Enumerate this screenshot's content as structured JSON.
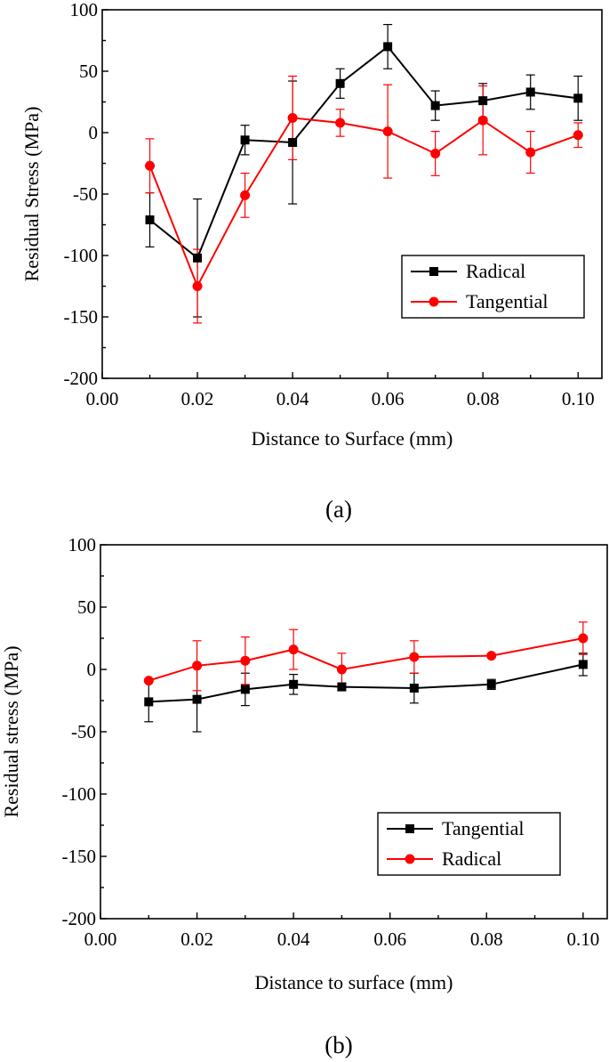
{
  "chart_data": [
    {
      "type": "line",
      "panel_label": "(a)",
      "xlabel": "Distance to Surface (mm)",
      "ylabel": "Residual Stress (MPa)",
      "xlim": [
        0.0,
        0.105
      ],
      "ylim": [
        -200,
        100
      ],
      "x_ticks": [
        0.0,
        0.02,
        0.04,
        0.06,
        0.08,
        0.1
      ],
      "x_tick_labels": [
        "0.00",
        "0.02",
        "0.04",
        "0.06",
        "0.08",
        "0.10"
      ],
      "y_ticks": [
        -200,
        -150,
        -100,
        -50,
        0,
        50,
        100
      ],
      "y_tick_labels": [
        "-200",
        "-150",
        "-100",
        "-50",
        "0",
        "50",
        "100"
      ],
      "legend_position": "lower-right",
      "series": [
        {
          "name": "Radical",
          "color": "#000000",
          "marker": "square",
          "x": [
            0.01,
            0.02,
            0.03,
            0.04,
            0.05,
            0.06,
            0.07,
            0.08,
            0.09,
            0.1
          ],
          "y": [
            -71,
            -102,
            -6,
            -8,
            40,
            70,
            22,
            26,
            33,
            28
          ],
          "err": [
            22,
            48,
            12,
            50,
            12,
            18,
            12,
            14,
            14,
            18
          ]
        },
        {
          "name": "Tangential",
          "color": "#ff0000",
          "marker": "circle",
          "x": [
            0.01,
            0.02,
            0.03,
            0.04,
            0.05,
            0.06,
            0.07,
            0.08,
            0.09,
            0.1
          ],
          "y": [
            -27,
            -125,
            -51,
            12,
            8,
            1,
            -17,
            10,
            -16,
            -2
          ],
          "err": [
            22,
            30,
            18,
            34,
            11,
            38,
            18,
            28,
            17,
            10
          ]
        }
      ]
    },
    {
      "type": "line",
      "panel_label": "(b)",
      "xlabel": "Distance to surface (mm)",
      "ylabel": "Residual stress (MPa)",
      "xlim": [
        0.0,
        0.105
      ],
      "ylim": [
        -200,
        100
      ],
      "x_ticks": [
        0.0,
        0.02,
        0.04,
        0.06,
        0.08,
        0.1
      ],
      "x_tick_labels": [
        "0.00",
        "0.02",
        "0.04",
        "0.06",
        "0.08",
        "0.10"
      ],
      "y_ticks": [
        -200,
        -150,
        -100,
        -50,
        0,
        50,
        100
      ],
      "y_tick_labels": [
        "-200",
        "-150",
        "-100",
        "-50",
        "0",
        "50",
        "100"
      ],
      "legend_position": "lower-right",
      "series": [
        {
          "name": "Tangential",
          "color": "#000000",
          "marker": "square",
          "x": [
            0.01,
            0.02,
            0.03,
            0.04,
            0.05,
            0.065,
            0.081,
            0.1
          ],
          "y": [
            -26,
            -24,
            -16,
            -12,
            -14,
            -15,
            -12,
            4
          ],
          "err": [
            16,
            26,
            13,
            8,
            3,
            12,
            4,
            9
          ]
        },
        {
          "name": "Radical",
          "color": "#ff0000",
          "marker": "circle",
          "x": [
            0.01,
            0.02,
            0.03,
            0.04,
            0.05,
            0.065,
            0.081,
            0.1
          ],
          "y": [
            -9,
            3,
            7,
            16,
            0,
            10,
            11,
            25
          ],
          "err": [
            0,
            20,
            19,
            16,
            13,
            13,
            0,
            13
          ]
        }
      ]
    }
  ]
}
